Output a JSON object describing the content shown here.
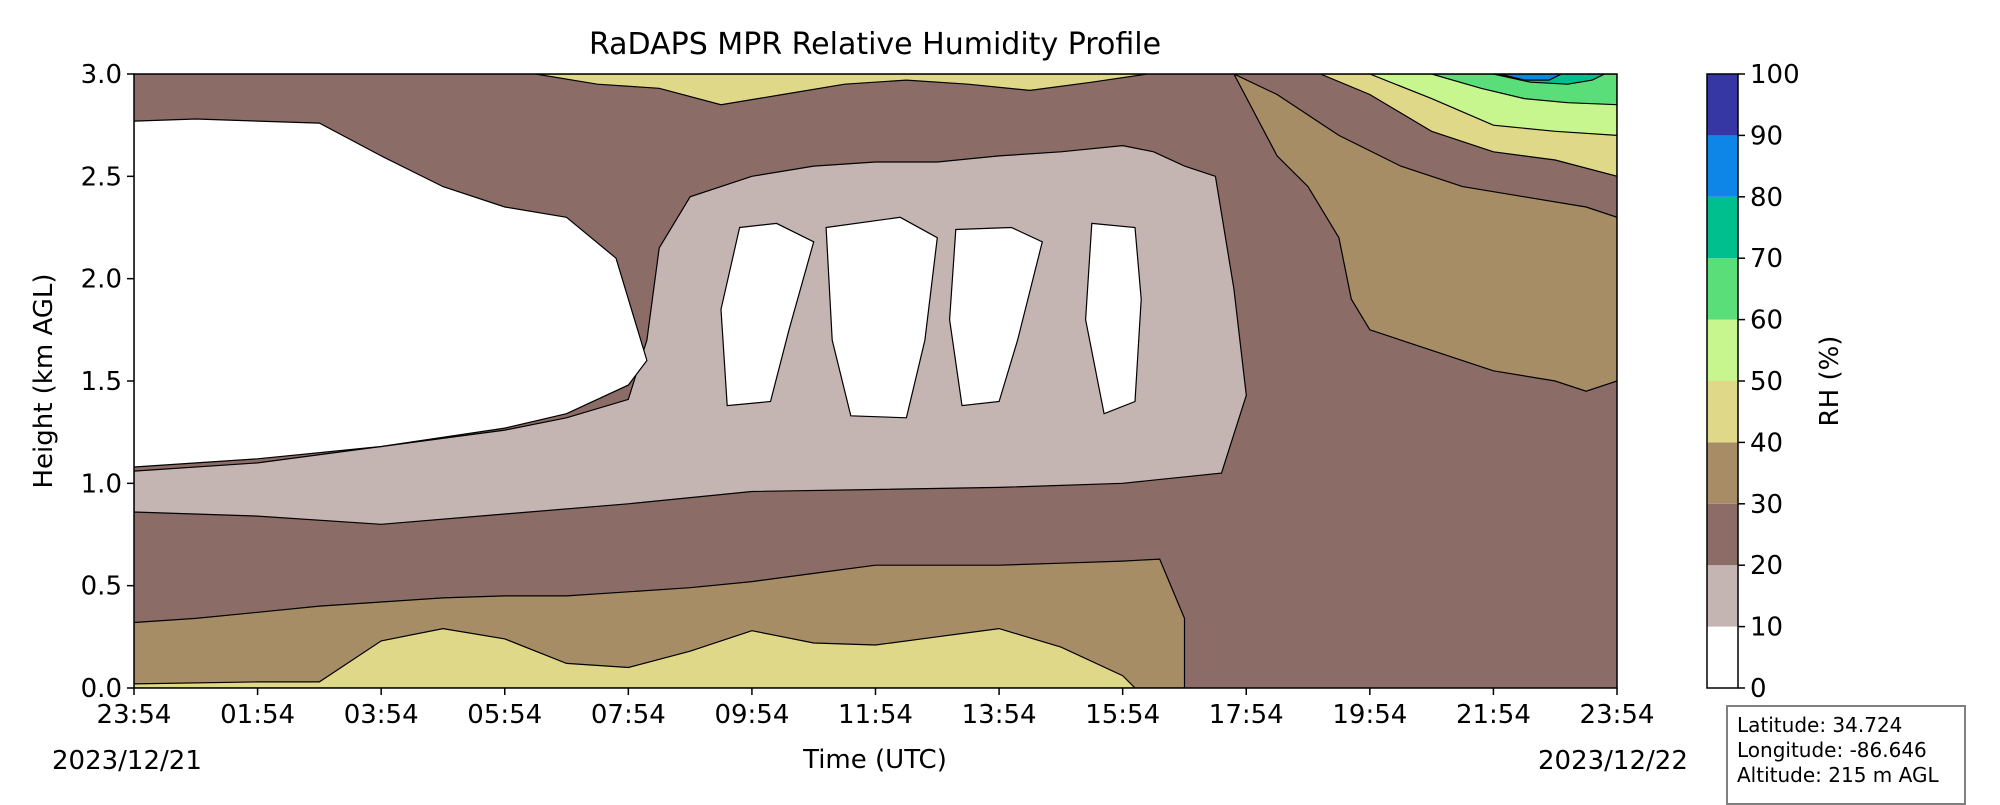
{
  "chart_data": {
    "type": "heatmap",
    "subtype": "filled-contour",
    "title": "RaDAPS MPR Relative Humidity Profile",
    "xlabel": "Time (UTC)",
    "ylabel": "Height (km AGL)",
    "x_ticks": [
      "23:54",
      "01:54",
      "03:54",
      "05:54",
      "07:54",
      "09:54",
      "11:54",
      "13:54",
      "15:54",
      "17:54",
      "19:54",
      "21:54",
      "23:54"
    ],
    "x_hours_from_start": [
      0,
      2,
      4,
      6,
      8,
      10,
      12,
      14,
      16,
      18,
      20,
      22,
      24
    ],
    "start_date": "2023/12/21",
    "end_date": "2023/12/22",
    "y_ticks": [
      "0.0",
      "0.5",
      "1.0",
      "1.5",
      "2.0",
      "2.5",
      "3.0"
    ],
    "ylim": [
      0,
      3.0
    ],
    "colorbar": {
      "label": "RH (%)",
      "ticks": [
        "0",
        "10",
        "20",
        "30",
        "40",
        "50",
        "60",
        "70",
        "80",
        "90",
        "100"
      ],
      "levels": [
        0,
        10,
        20,
        30,
        40,
        50,
        60,
        70,
        80,
        90,
        100
      ],
      "colors": [
        "#ffffff",
        "#c5b5b2",
        "#8c6c66",
        "#a78d65",
        "#e0d889",
        "#c8f68e",
        "#5ade7a",
        "#00bf8f",
        "#0d86e8",
        "#3636a5"
      ]
    },
    "bands_km": [
      {
        "from": "#a78d65",
        "points": [
          [
            0,
            0.32
          ],
          [
            1,
            0.34
          ],
          [
            2,
            0.37
          ],
          [
            3,
            0.4
          ],
          [
            4,
            0.42
          ],
          [
            5,
            0.44
          ],
          [
            6,
            0.45
          ],
          [
            7,
            0.45
          ],
          [
            8,
            0.47
          ],
          [
            9,
            0.49
          ],
          [
            10,
            0.52
          ],
          [
            11,
            0.56
          ],
          [
            12,
            0.6
          ],
          [
            13,
            0.6
          ],
          [
            14,
            0.6
          ],
          [
            15,
            0.61
          ],
          [
            16,
            0.62
          ],
          [
            16.6,
            0.63
          ],
          [
            17.0,
            0.34
          ]
        ]
      },
      {
        "from": "#e0d889",
        "points": [
          [
            0,
            0.02
          ],
          [
            2,
            0.03
          ],
          [
            3,
            0.03
          ],
          [
            4,
            0.23
          ],
          [
            5,
            0.29
          ],
          [
            6,
            0.24
          ],
          [
            7,
            0.12
          ],
          [
            8,
            0.1
          ],
          [
            9,
            0.18
          ],
          [
            10,
            0.28
          ],
          [
            11,
            0.22
          ],
          [
            12,
            0.21
          ],
          [
            13,
            0.25
          ],
          [
            14,
            0.29
          ],
          [
            15,
            0.2
          ],
          [
            16,
            0.06
          ],
          [
            16.2,
            0.0
          ]
        ]
      },
      {
        "from": "#c5b5b2",
        "points": [
          [
            0,
            1.06
          ],
          [
            2,
            1.1
          ],
          [
            4,
            1.18
          ],
          [
            6,
            1.26
          ],
          [
            7,
            1.32
          ],
          [
            8,
            1.41
          ],
          [
            8.3,
            1.7
          ],
          [
            8.5,
            2.15
          ],
          [
            9,
            2.4
          ],
          [
            10,
            2.5
          ],
          [
            11,
            2.55
          ],
          [
            12,
            2.57
          ],
          [
            13,
            2.57
          ],
          [
            14,
            2.6
          ],
          [
            15,
            2.62
          ],
          [
            16,
            2.65
          ],
          [
            16.5,
            2.62
          ],
          [
            17,
            2.55
          ],
          [
            17.5,
            2.5
          ],
          [
            17.8,
            1.95
          ],
          [
            18,
            1.43
          ],
          [
            17.6,
            1.05
          ],
          [
            16,
            1.0
          ],
          [
            14,
            0.98
          ],
          [
            12,
            0.97
          ],
          [
            10,
            0.96
          ],
          [
            8,
            0.9
          ],
          [
            6,
            0.85
          ],
          [
            4,
            0.8
          ],
          [
            2,
            0.84
          ],
          [
            0,
            0.86
          ]
        ]
      },
      {
        "from": "#ffffff",
        "points": [
          [
            0,
            2.77
          ],
          [
            1,
            2.78
          ],
          [
            2,
            2.77
          ],
          [
            3,
            2.76
          ],
          [
            4,
            2.6
          ],
          [
            5,
            2.45
          ],
          [
            6,
            2.35
          ],
          [
            7,
            2.3
          ],
          [
            7.8,
            2.1
          ],
          [
            8.3,
            1.6
          ],
          [
            8.0,
            1.48
          ],
          [
            7,
            1.34
          ],
          [
            6,
            1.27
          ],
          [
            4,
            1.18
          ],
          [
            2,
            1.12
          ],
          [
            0,
            1.08
          ]
        ]
      }
    ],
    "white_cells_km": [
      [
        [
          9.8,
          2.25
        ],
        [
          10.4,
          2.27
        ],
        [
          11.0,
          2.18
        ],
        [
          10.6,
          1.75
        ],
        [
          10.3,
          1.4
        ],
        [
          9.6,
          1.38
        ],
        [
          9.5,
          1.85
        ]
      ],
      [
        [
          11.2,
          2.25
        ],
        [
          12.4,
          2.3
        ],
        [
          13.0,
          2.2
        ],
        [
          12.8,
          1.7
        ],
        [
          12.5,
          1.32
        ],
        [
          11.6,
          1.33
        ],
        [
          11.3,
          1.7
        ]
      ],
      [
        [
          13.3,
          2.24
        ],
        [
          14.2,
          2.25
        ],
        [
          14.7,
          2.18
        ],
        [
          14.3,
          1.7
        ],
        [
          14.0,
          1.4
        ],
        [
          13.4,
          1.38
        ],
        [
          13.2,
          1.8
        ]
      ],
      [
        [
          15.5,
          2.27
        ],
        [
          16.2,
          2.25
        ],
        [
          16.3,
          1.9
        ],
        [
          16.2,
          1.4
        ],
        [
          15.7,
          1.34
        ],
        [
          15.4,
          1.8
        ]
      ]
    ],
    "moist_upper_km": [
      {
        "color": "#e0d889",
        "points": [
          [
            6.5,
            3.0
          ],
          [
            7.5,
            2.95
          ],
          [
            8.5,
            2.93
          ],
          [
            9.5,
            2.85
          ],
          [
            10.5,
            2.9
          ],
          [
            11.5,
            2.95
          ],
          [
            12.5,
            2.97
          ],
          [
            13.5,
            2.95
          ],
          [
            14.5,
            2.92
          ],
          [
            15.5,
            2.96
          ],
          [
            16.4,
            3.0
          ]
        ]
      },
      {
        "color": "#a78d65",
        "points": [
          [
            17.8,
            3.0
          ],
          [
            18.5,
            2.9
          ],
          [
            19.5,
            2.7
          ],
          [
            20.5,
            2.55
          ],
          [
            21.5,
            2.45
          ],
          [
            22.5,
            2.4
          ],
          [
            23.5,
            2.35
          ],
          [
            24,
            2.3
          ],
          [
            24,
            1.5
          ],
          [
            23.5,
            1.45
          ],
          [
            23,
            1.5
          ],
          [
            22,
            1.55
          ],
          [
            21,
            1.65
          ],
          [
            20,
            1.75
          ],
          [
            19.7,
            1.9
          ],
          [
            19.5,
            2.2
          ],
          [
            19.0,
            2.45
          ],
          [
            18.5,
            2.6
          ]
        ]
      },
      {
        "color": "#e0d889",
        "points": [
          [
            19.2,
            3.0
          ],
          [
            20,
            2.9
          ],
          [
            21,
            2.72
          ],
          [
            22,
            2.62
          ],
          [
            23,
            2.58
          ],
          [
            24,
            2.5
          ],
          [
            24,
            3.0
          ]
        ]
      },
      {
        "color": "#c8f68e",
        "points": [
          [
            20.0,
            3.0
          ],
          [
            21,
            2.88
          ],
          [
            22,
            2.75
          ],
          [
            23,
            2.72
          ],
          [
            24,
            2.7
          ],
          [
            24,
            3.0
          ]
        ]
      },
      {
        "color": "#5ade7a",
        "points": [
          [
            21.0,
            3.0
          ],
          [
            21.8,
            2.93
          ],
          [
            22.5,
            2.88
          ],
          [
            23.2,
            2.86
          ],
          [
            24,
            2.85
          ],
          [
            24,
            3.0
          ]
        ]
      },
      {
        "color": "#00bf8f",
        "points": [
          [
            22.0,
            3.0
          ],
          [
            22.6,
            2.96
          ],
          [
            23.2,
            2.95
          ],
          [
            23.6,
            2.97
          ],
          [
            23.8,
            3.0
          ]
        ]
      },
      {
        "color": "#0d86e8",
        "points": [
          [
            22.1,
            3.0
          ],
          [
            22.5,
            2.97
          ],
          [
            22.9,
            2.97
          ],
          [
            23.1,
            3.0
          ]
        ]
      }
    ],
    "info": {
      "latitude": "Latitude: 34.724",
      "longitude": "Longitude: -86.646",
      "altitude": "Altitude: 215 m AGL"
    }
  }
}
